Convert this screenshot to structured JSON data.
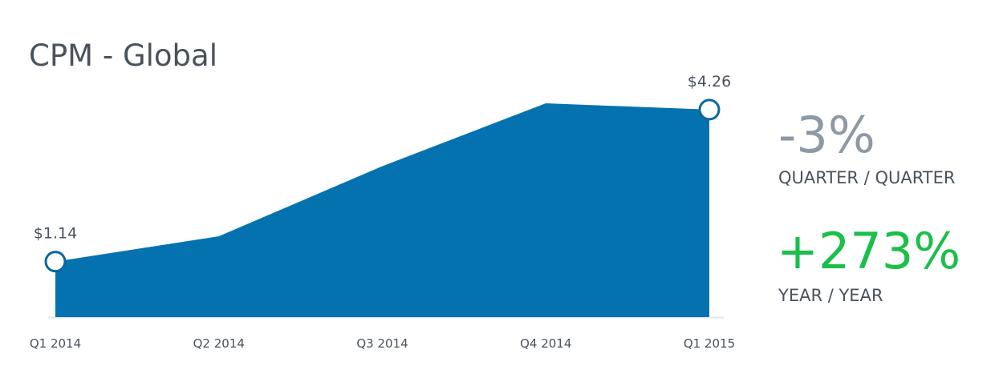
{
  "chart_data": {
    "type": "area",
    "title": "CPM - Global",
    "categories": [
      "Q1 2014",
      "Q2 2014",
      "Q3 2014",
      "Q4 2014",
      "Q1 2015"
    ],
    "values": [
      1.14,
      1.66,
      3.1,
      4.39,
      4.26
    ],
    "value_labels": [
      "$1.14",
      null,
      null,
      null,
      "$4.26"
    ],
    "color": "#0572b0"
  },
  "stats": [
    {
      "value": "-3%",
      "label": "QUARTER / QUARTER",
      "color": "#8e99a6"
    },
    {
      "value": "+273%",
      "label": "YEAR / YEAR",
      "color": "#1bbf4b"
    }
  ]
}
